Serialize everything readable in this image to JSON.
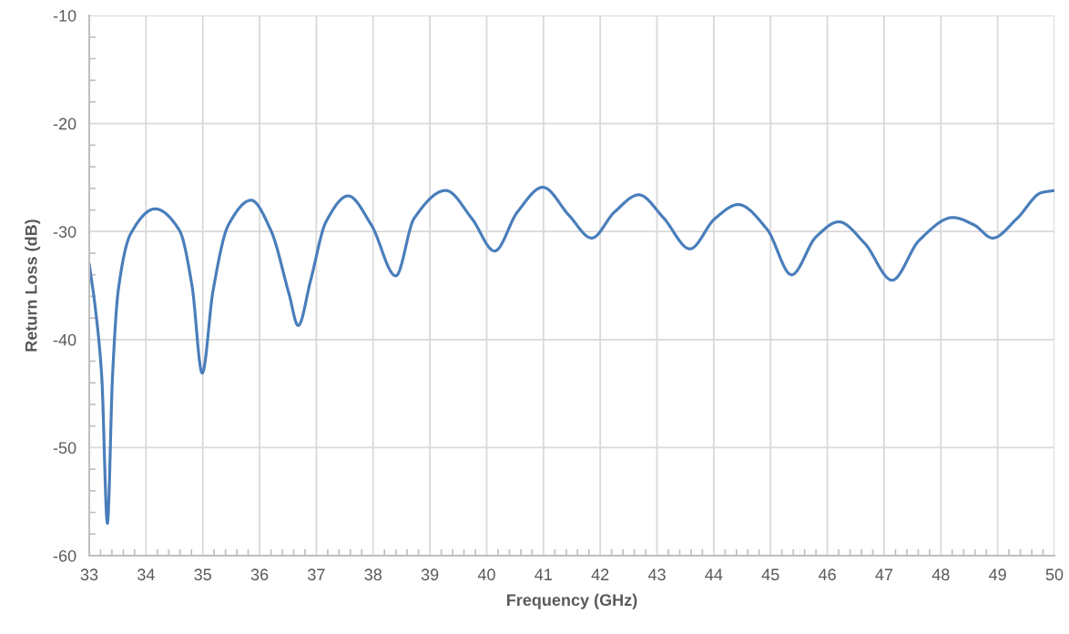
{
  "chart_data": {
    "type": "line",
    "xlabel": "Frequency (GHz)",
    "ylabel": "Return Loss (dB)",
    "xlim": [
      33,
      50
    ],
    "xticks": [
      33,
      34,
      35,
      36,
      37,
      38,
      39,
      40,
      41,
      42,
      43,
      44,
      45,
      46,
      47,
      48,
      49,
      50
    ],
    "ylim": [
      -60,
      -10
    ],
    "yticks": [
      -60,
      -50,
      -40,
      -30,
      -20,
      -10
    ],
    "grid": true,
    "marker": "none",
    "line_style": "solid",
    "series": [
      {
        "color": "#4a7ebb",
        "x": [
          33.0,
          33.11,
          33.22,
          33.32,
          33.41,
          33.51,
          33.73,
          34.16,
          34.59,
          34.81,
          34.99,
          35.18,
          35.45,
          35.85,
          36.2,
          36.52,
          36.68,
          36.9,
          37.17,
          37.56,
          37.97,
          38.4,
          38.72,
          39.28,
          39.74,
          40.14,
          40.54,
          40.99,
          41.45,
          41.85,
          42.25,
          42.68,
          43.11,
          43.58,
          44.02,
          44.43,
          44.94,
          45.37,
          45.8,
          46.2,
          46.66,
          47.14,
          47.62,
          48.21,
          48.59,
          48.91,
          49.34,
          49.77,
          50.0
        ],
        "values": [
          -33.0,
          -37.2,
          -43.4,
          -57.0,
          -43.4,
          -35.5,
          -30.2,
          -27.9,
          -29.9,
          -35.0,
          -43.1,
          -35.5,
          -29.4,
          -27.1,
          -29.9,
          -35.8,
          -38.7,
          -34.5,
          -29.1,
          -26.7,
          -29.4,
          -34.1,
          -28.8,
          -26.2,
          -28.8,
          -31.8,
          -28.2,
          -25.9,
          -28.5,
          -30.6,
          -28.2,
          -26.6,
          -28.7,
          -31.6,
          -28.8,
          -27.5,
          -29.8,
          -34.0,
          -30.5,
          -29.1,
          -31.1,
          -34.5,
          -30.8,
          -28.7,
          -29.4,
          -30.6,
          -28.8,
          -26.4,
          -26.2
        ]
      }
    ]
  }
}
